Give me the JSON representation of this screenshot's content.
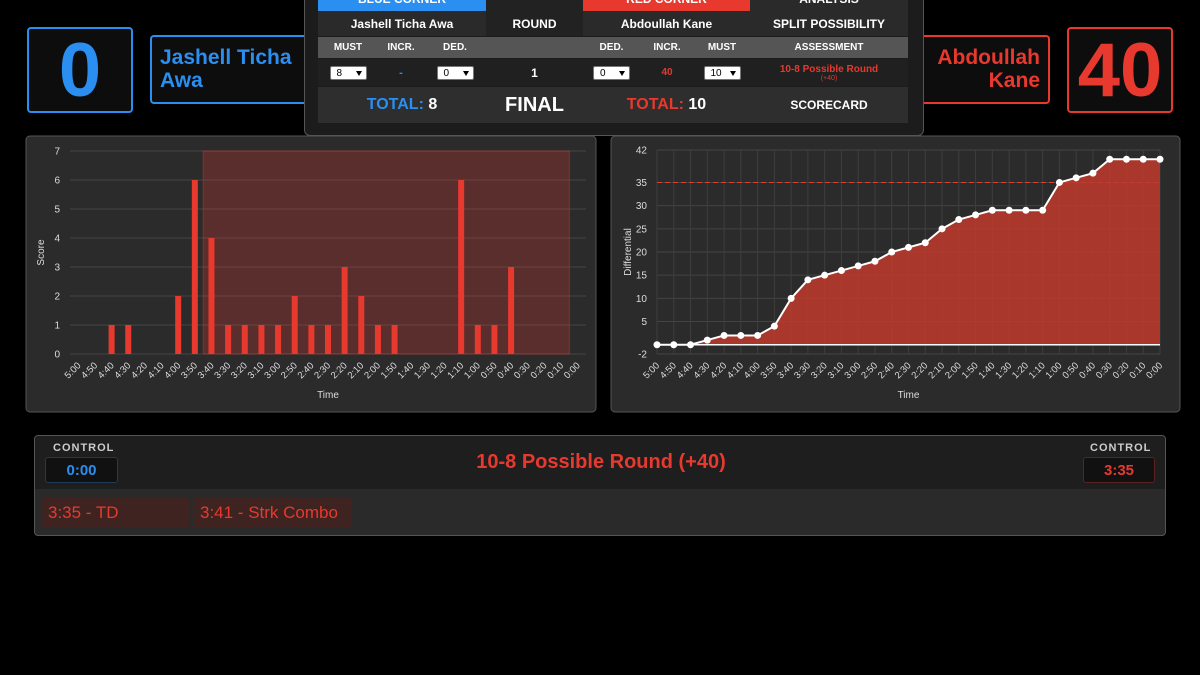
{
  "blue": {
    "score": 0,
    "name_first": "Jashell Ticha",
    "name_last": "Awa",
    "color": "#2a8ff0"
  },
  "red": {
    "score": 40,
    "name_first": "Abdoullah",
    "name_last": "Kane",
    "color": "#e8392e"
  },
  "scorecard": {
    "header": {
      "blue": "BLUE CORNER",
      "red": "RED CORNER",
      "analysis": "ANALYSIS"
    },
    "names": {
      "blue": "Jashell Ticha Awa",
      "round": "ROUND",
      "red": "Abdoullah Kane",
      "analysis": "SPLIT POSSIBILITY"
    },
    "columns": [
      "MUST",
      "INCR.",
      "DED.",
      "DED.",
      "INCR.",
      "MUST",
      "ASSESSMENT"
    ],
    "row": {
      "blue_must": 8,
      "blue_incr": "-",
      "blue_ded": 0,
      "round": 1,
      "red_ded": 0,
      "red_incr": 40,
      "red_must": 10,
      "assessment": "10-8 Possible Round",
      "assessment_note": "(+40)"
    },
    "totals": {
      "blue_label": "TOTAL:",
      "blue": 8,
      "final": "FINAL",
      "red_label": "TOTAL:",
      "red": 10,
      "scorecard": "SCORECARD"
    }
  },
  "control": {
    "blue_label": "CONTROL",
    "blue_time": "0:00",
    "status": "10-8 Possible Round (+40)",
    "red_label": "CONTROL",
    "red_time": "3:35",
    "events": [
      "3:35 - TD",
      "3:41 - Strk Combo"
    ]
  },
  "chart_data": [
    {
      "type": "bar",
      "xlabel": "Time",
      "ylabel": "Score",
      "categories": [
        "5:00",
        "4:50",
        "4:40",
        "4:30",
        "4:20",
        "4:10",
        "4:00",
        "3:50",
        "3:40",
        "3:30",
        "3:20",
        "3:10",
        "3:00",
        "2:50",
        "2:40",
        "2:30",
        "2:20",
        "2:10",
        "2:00",
        "1:50",
        "1:40",
        "1:30",
        "1:20",
        "1:10",
        "1:00",
        "0:50",
        "0:40",
        "0:30",
        "0:20",
        "0:10",
        "0:00"
      ],
      "values": [
        0,
        0,
        1,
        1,
        0,
        0,
        2,
        6,
        4,
        1,
        1,
        1,
        1,
        2,
        1,
        1,
        3,
        2,
        1,
        1,
        0,
        0,
        0,
        6,
        1,
        1,
        3,
        0,
        0,
        0,
        0
      ],
      "color": "#e8392e",
      "ylim": [
        0,
        7
      ],
      "yticks": [
        0,
        1,
        2,
        3,
        4,
        5,
        6,
        7
      ],
      "grid": true,
      "highlight": {
        "from": "3:40",
        "to": "0:10",
        "color": "#e8392e"
      }
    },
    {
      "type": "line",
      "xlabel": "Time",
      "ylabel": "Differential",
      "categories": [
        "5:00",
        "4:50",
        "4:40",
        "4:30",
        "4:20",
        "4:10",
        "4:00",
        "3:50",
        "3:40",
        "3:30",
        "3:20",
        "3:10",
        "3:00",
        "2:50",
        "2:40",
        "2:30",
        "2:20",
        "2:10",
        "2:00",
        "1:50",
        "1:40",
        "1:30",
        "1:20",
        "1:10",
        "1:00",
        "0:50",
        "0:40",
        "0:30",
        "0:20",
        "0:10",
        "0:00"
      ],
      "values": [
        0,
        0,
        0,
        1,
        2,
        2,
        2,
        4,
        10,
        14,
        15,
        16,
        17,
        18,
        20,
        21,
        22,
        25,
        27,
        28,
        29,
        29,
        29,
        29,
        35,
        36,
        37,
        40,
        40,
        40,
        40
      ],
      "color": "#ffffff",
      "fill": "#c0392b",
      "ylim": [
        -2,
        42
      ],
      "yticks": [
        -2,
        5,
        10,
        15,
        20,
        25,
        30,
        35,
        42
      ],
      "grid": true,
      "reference_line": {
        "value": 35,
        "color": "#e8392e"
      }
    }
  ]
}
